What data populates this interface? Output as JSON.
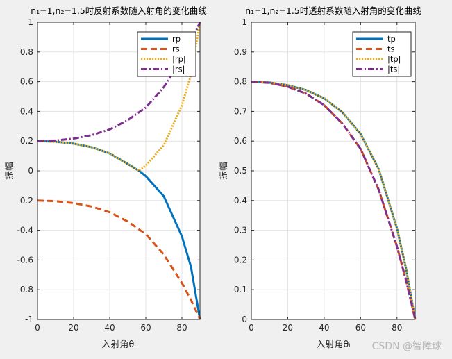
{
  "colors": {
    "rp": "#0072BD",
    "rs": "#D95319",
    "abs1": "#EDB120",
    "abs2": "#7E2F8E"
  },
  "watermark": "CSDN @智障球",
  "chart_data": [
    {
      "type": "line",
      "title": "n₁=1,n₂=1.5时反射系数随入射角的变化曲线",
      "xlabel": "入射角θᵢ",
      "ylabel": "振幅",
      "xlim": [
        0,
        90
      ],
      "ylim": [
        -1,
        1
      ],
      "xticks": [
        "0",
        "20",
        "40",
        "60",
        "80"
      ],
      "yticks": [
        "-1",
        "-0.8",
        "-0.6",
        "-0.4",
        "-0.2",
        "0",
        "0.2",
        "0.4",
        "0.6",
        "0.8",
        "1"
      ],
      "grid": true,
      "legend_position": "top-right",
      "series": [
        {
          "name": "rp",
          "style": "solid",
          "color_key": "rp",
          "x": [
            0,
            10,
            20,
            30,
            40,
            50,
            56.3,
            60,
            70,
            80,
            85,
            90
          ],
          "y": [
            0.2,
            0.196,
            0.183,
            0.159,
            0.117,
            0.046,
            0.0,
            -0.036,
            -0.172,
            -0.441,
            -0.645,
            -1.0
          ]
        },
        {
          "name": "rs",
          "style": "dashed",
          "color_key": "rs",
          "x": [
            0,
            10,
            20,
            30,
            40,
            50,
            60,
            70,
            80,
            85,
            90
          ],
          "y": [
            -0.2,
            -0.204,
            -0.217,
            -0.24,
            -0.279,
            -0.341,
            -0.426,
            -0.564,
            -0.755,
            -0.869,
            -1.0
          ]
        },
        {
          "name": "|rp|",
          "style": "dotted",
          "color_key": "abs1",
          "x": [
            0,
            10,
            20,
            30,
            40,
            50,
            56.3,
            60,
            70,
            80,
            85,
            90
          ],
          "y": [
            0.2,
            0.196,
            0.183,
            0.159,
            0.117,
            0.046,
            0.0,
            0.036,
            0.172,
            0.441,
            0.645,
            1.0
          ]
        },
        {
          "name": "|rs|",
          "style": "dashdot",
          "color_key": "abs2",
          "x": [
            0,
            10,
            20,
            30,
            40,
            50,
            60,
            70,
            80,
            85,
            90
          ],
          "y": [
            0.2,
            0.204,
            0.217,
            0.24,
            0.279,
            0.341,
            0.426,
            0.564,
            0.755,
            0.869,
            1.0
          ]
        }
      ]
    },
    {
      "type": "line",
      "title": "n₁=1,n₂=1.5时透射系数随入射角的变化曲线",
      "xlabel": "入射角θᵢ",
      "ylabel": "振幅",
      "xlim": [
        0,
        90
      ],
      "ylim": [
        0,
        1
      ],
      "xticks": [
        "0",
        "20",
        "40",
        "60",
        "80"
      ],
      "yticks": [
        "0",
        "0.1",
        "0.2",
        "0.3",
        "0.4",
        "0.5",
        "0.6",
        "0.7",
        "0.8",
        "0.9",
        "1"
      ],
      "grid": true,
      "legend_position": "top-right",
      "series": [
        {
          "name": "tp",
          "style": "solid",
          "color_key": "rp",
          "x": [
            0,
            10,
            20,
            30,
            40,
            50,
            60,
            70,
            80,
            85,
            90
          ],
          "y": [
            0.8,
            0.797,
            0.788,
            0.772,
            0.744,
            0.697,
            0.624,
            0.505,
            0.306,
            0.171,
            0.0
          ]
        },
        {
          "name": "ts",
          "style": "dashed",
          "color_key": "rs",
          "x": [
            0,
            10,
            20,
            30,
            40,
            50,
            60,
            70,
            80,
            85,
            90
          ],
          "y": [
            0.8,
            0.796,
            0.783,
            0.76,
            0.721,
            0.659,
            0.574,
            0.436,
            0.245,
            0.131,
            0.0
          ]
        },
        {
          "name": "|tp|",
          "style": "dotted",
          "color_key": "abs1",
          "x": [
            0,
            10,
            20,
            30,
            40,
            50,
            60,
            70,
            80,
            85,
            90
          ],
          "y": [
            0.8,
            0.797,
            0.788,
            0.772,
            0.744,
            0.697,
            0.624,
            0.505,
            0.306,
            0.171,
            0.0
          ]
        },
        {
          "name": "|ts|",
          "style": "dashdot",
          "color_key": "abs2",
          "x": [
            0,
            10,
            20,
            30,
            40,
            50,
            60,
            70,
            80,
            85,
            90
          ],
          "y": [
            0.8,
            0.796,
            0.783,
            0.76,
            0.721,
            0.659,
            0.574,
            0.436,
            0.245,
            0.131,
            0.0
          ]
        }
      ]
    }
  ]
}
